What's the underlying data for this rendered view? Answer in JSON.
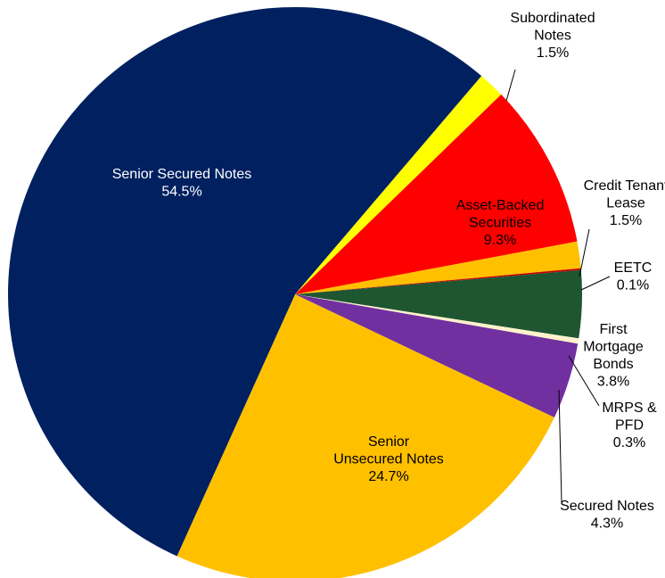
{
  "chart_data": {
    "type": "pie",
    "title": "",
    "start_angle_deg": 49.5,
    "direction": "clockwise",
    "slices": [
      {
        "name": [
          "Subordinated",
          "Notes"
        ],
        "value": 1.5,
        "label": "1.5%",
        "color": "#ffff00"
      },
      {
        "name": [
          "Asset-Backed",
          "Securities"
        ],
        "value": 9.3,
        "label": "9.3%",
        "color": "#ff0000"
      },
      {
        "name": [
          "Credit Tenant",
          "Lease"
        ],
        "value": 1.5,
        "label": "1.5%",
        "color": "#ffc000"
      },
      {
        "name": [
          "EETC"
        ],
        "value": 0.1,
        "label": "0.1%",
        "color": "#c00000"
      },
      {
        "name": [
          "First",
          "Mortgage",
          "Bonds"
        ],
        "value": 3.8,
        "label": "3.8%",
        "color": "#1e5631"
      },
      {
        "name": [
          "MRPS &",
          "PFD"
        ],
        "value": 0.3,
        "label": "0.3%",
        "color": "#fff2cc"
      },
      {
        "name": [
          "Secured Notes"
        ],
        "value": 4.3,
        "label": "4.3%",
        "color": "#7030a0"
      },
      {
        "name": [
          "Senior",
          "Unsecured Notes"
        ],
        "value": 24.7,
        "label": "24.7%",
        "color": "#ffc000"
      },
      {
        "name": [
          "Senior Secured Notes"
        ],
        "value": 54.5,
        "label": "54.5%",
        "color": "#002060"
      }
    ]
  }
}
